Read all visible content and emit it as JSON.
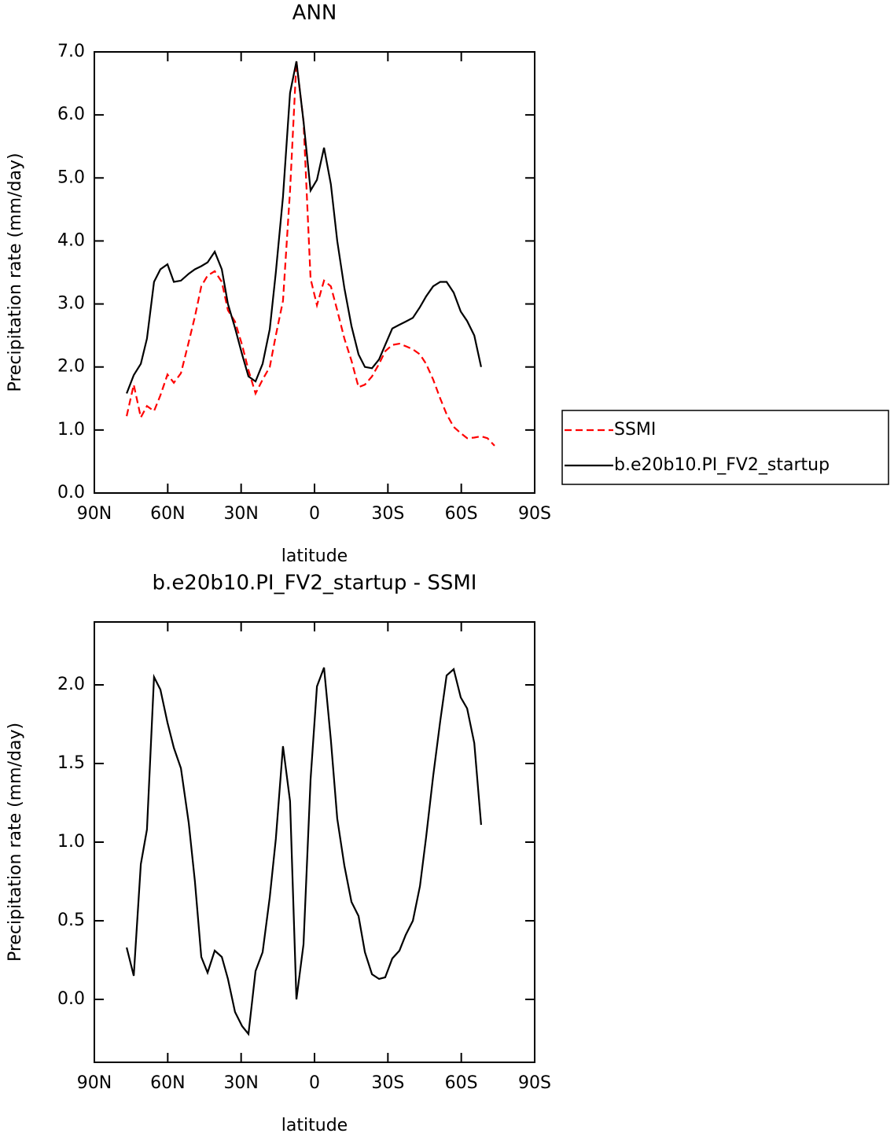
{
  "chart_data": [
    {
      "type": "line",
      "title": "ANN",
      "x_label": "latitude",
      "y_label": "Precipitation rate (mm/day)",
      "xlim": [
        90,
        -90
      ],
      "xticks": [
        {
          "value": 90,
          "label": "90N"
        },
        {
          "value": 60,
          "label": "60N"
        },
        {
          "value": 30,
          "label": "30N"
        },
        0,
        {
          "value": -30,
          "label": "30S"
        },
        {
          "value": -60,
          "label": "60S"
        },
        {
          "value": -90,
          "label": "90S"
        }
      ],
      "ylim": [
        0,
        7
      ],
      "yticks": [
        {
          "value": 0,
          "label": "0.0"
        },
        {
          "value": 1,
          "label": "1.0"
        },
        {
          "value": 2,
          "label": "2.0"
        },
        {
          "value": 3,
          "label": "3.0"
        },
        {
          "value": 4,
          "label": "4.0"
        },
        {
          "value": 5,
          "label": "5.0"
        },
        {
          "value": 6,
          "label": "6.0"
        },
        {
          "value": 7,
          "label": "7.0"
        }
      ],
      "legend": "right",
      "x": [
        76.8,
        73.9,
        71.0,
        68.5,
        65.6,
        63.0,
        60.1,
        57.5,
        54.6,
        51.4,
        48.9,
        46.3,
        43.7,
        40.8,
        37.9,
        35.4,
        32.5,
        29.6,
        27.0,
        24.1,
        21.2,
        18.3,
        15.8,
        12.9,
        10.0,
        7.4,
        4.5,
        1.6,
        -1.0,
        -3.9,
        -6.7,
        -9.3,
        -12.2,
        -15.1,
        -18.0,
        -20.6,
        -23.5,
        -26.4,
        -28.9,
        -31.8,
        -34.7,
        -37.3,
        -40.2,
        -43.1,
        -45.6,
        -48.5,
        -51.4,
        -54.0,
        -56.9,
        -59.8,
        -62.4,
        -65.3,
        -68.1,
        -70.7,
        -73.6
      ],
      "series": [
        {
          "name": "SSMI",
          "color": "#ff0000",
          "style": "dashed",
          "values": [
            1.22,
            1.72,
            1.2,
            1.38,
            1.3,
            1.55,
            1.88,
            1.75,
            1.9,
            2.4,
            2.8,
            3.28,
            3.45,
            3.52,
            3.35,
            2.9,
            2.72,
            2.35,
            1.95,
            1.58,
            1.8,
            2.0,
            2.5,
            3.05,
            4.8,
            6.85,
            5.9,
            3.4,
            2.98,
            3.37,
            3.28,
            2.9,
            2.45,
            2.1,
            1.68,
            1.72,
            1.85,
            2.05,
            2.25,
            2.35,
            2.37,
            2.33,
            2.28,
            2.2,
            2.05,
            1.8,
            1.5,
            1.25,
            1.05,
            0.95,
            0.87,
            0.88,
            0.9,
            0.87,
            0.75
          ]
        },
        {
          "name": "b.e20b10.PI_FV2_startup",
          "color": "#000000",
          "style": "solid",
          "values": [
            1.58,
            1.87,
            2.05,
            2.45,
            3.35,
            3.55,
            3.63,
            3.35,
            3.37,
            3.48,
            3.55,
            3.6,
            3.66,
            3.83,
            3.55,
            3.0,
            2.62,
            2.2,
            1.85,
            1.77,
            2.05,
            2.6,
            3.5,
            4.7,
            6.35,
            6.85,
            5.9,
            4.8,
            4.97,
            5.48,
            4.9,
            4.0,
            3.25,
            2.65,
            2.2,
            2.0,
            1.98,
            2.12,
            2.35,
            2.61,
            2.67,
            2.72,
            2.78,
            2.95,
            3.12,
            3.28,
            3.35,
            3.35,
            3.18,
            2.88,
            2.73,
            2.5,
            2.0,
            null,
            null
          ]
        }
      ]
    },
    {
      "type": "line",
      "title": "b.e20b10.PI_FV2_startup - SSMI",
      "x_label": "latitude",
      "y_label": "Precipitation rate (mm/day)",
      "xlim": [
        90,
        -90
      ],
      "xticks": [
        {
          "value": 90,
          "label": "90N"
        },
        {
          "value": 60,
          "label": "60N"
        },
        {
          "value": 30,
          "label": "30N"
        },
        0,
        {
          "value": -30,
          "label": "30S"
        },
        {
          "value": -60,
          "label": "60S"
        },
        {
          "value": -90,
          "label": "90S"
        }
      ],
      "ylim": [
        -0.4,
        2.4
      ],
      "yticks": [
        {
          "value": 0,
          "label": "0.0"
        },
        0.5,
        {
          "value": 1,
          "label": "1.0"
        },
        1.5,
        {
          "value": 2,
          "label": "2.0"
        }
      ],
      "x": [
        76.8,
        73.9,
        71.0,
        68.5,
        65.6,
        63.0,
        60.1,
        57.5,
        54.6,
        51.4,
        48.9,
        46.3,
        43.7,
        40.8,
        37.9,
        35.4,
        32.5,
        29.6,
        27.0,
        24.1,
        21.2,
        18.3,
        15.8,
        12.9,
        10.0,
        7.4,
        4.5,
        1.6,
        -1.0,
        -3.9,
        -6.7,
        -9.3,
        -12.2,
        -15.1,
        -18.0,
        -20.6,
        -23.5,
        -26.4,
        -28.9,
        -31.8,
        -34.7,
        -37.3,
        -40.2,
        -43.1,
        -45.6,
        -48.5,
        -51.4,
        -54.0,
        -56.9,
        -59.8,
        -62.4,
        -65.3,
        -68.1
      ],
      "series": [
        {
          "color": "#000000",
          "style": "solid",
          "values": [
            0.33,
            0.15,
            0.86,
            1.08,
            2.05,
            1.97,
            1.76,
            1.6,
            1.47,
            1.12,
            0.75,
            0.27,
            0.17,
            0.31,
            0.27,
            0.13,
            -0.08,
            -0.17,
            -0.22,
            0.18,
            0.3,
            0.65,
            1.02,
            1.61,
            1.26,
            0.0,
            0.35,
            1.4,
            1.99,
            2.11,
            1.65,
            1.15,
            0.85,
            0.62,
            0.53,
            0.3,
            0.16,
            0.13,
            0.14,
            0.26,
            0.31,
            0.41,
            0.5,
            0.72,
            1.03,
            1.42,
            1.77,
            2.06,
            2.1,
            1.92,
            1.85,
            1.63,
            1.11
          ]
        }
      ]
    }
  ]
}
